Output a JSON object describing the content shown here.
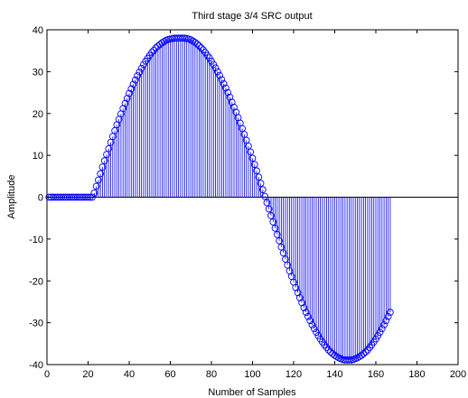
{
  "chart_data": {
    "type": "stem",
    "title": "Third stage 3/4 SRC  output",
    "xlabel": "Number of Samples",
    "ylabel": "Amplitude",
    "xlim": [
      0,
      200
    ],
    "ylim": [
      -40,
      40
    ],
    "xticks": [
      0,
      20,
      40,
      60,
      80,
      100,
      120,
      140,
      160,
      180,
      200
    ],
    "yticks": [
      -40,
      -30,
      -20,
      -10,
      0,
      10,
      20,
      30,
      40
    ],
    "grid": false,
    "marker": "circle-open",
    "color": "#0000ff",
    "series": [
      {
        "x_start": 1,
        "x_step": 1,
        "values": [
          0,
          0,
          0,
          0,
          0,
          0,
          0,
          0,
          0,
          0,
          0,
          0,
          0,
          0,
          0,
          0,
          0,
          0,
          0,
          0,
          0,
          0,
          1.0,
          2.6,
          4.1,
          5.6,
          7.2,
          8.7,
          10.2,
          11.6,
          13.1,
          14.5,
          15.9,
          17.3,
          18.6,
          19.9,
          21.2,
          22.4,
          23.6,
          24.8,
          25.9,
          27.0,
          28.0,
          29.0,
          29.9,
          30.8,
          31.7,
          32.5,
          33.2,
          33.9,
          34.6,
          35.1,
          35.7,
          36.1,
          36.5,
          36.9,
          37.2,
          37.5,
          37.7,
          37.8,
          37.9,
          38.0,
          38.0,
          38.0,
          38.0,
          38.0,
          38.0,
          37.9,
          37.8,
          37.6,
          37.3,
          37.0,
          36.6,
          36.2,
          35.7,
          35.2,
          34.6,
          33.9,
          33.3,
          32.5,
          31.7,
          30.9,
          30.0,
          29.1,
          28.1,
          27.1,
          26.1,
          25.0,
          23.9,
          22.7,
          21.5,
          20.3,
          19.0,
          17.7,
          16.4,
          15.0,
          13.6,
          12.2,
          10.8,
          9.3,
          7.8,
          6.3,
          4.8,
          3.3,
          1.8,
          0.2,
          -1.3,
          -2.8,
          -4.4,
          -5.9,
          -7.4,
          -8.9,
          -10.4,
          -11.9,
          -13.3,
          -14.8,
          -16.2,
          -17.6,
          -18.9,
          -20.3,
          -21.6,
          -22.8,
          -24.0,
          -25.2,
          -26.4,
          -27.5,
          -28.5,
          -29.5,
          -30.5,
          -31.4,
          -32.3,
          -33.1,
          -33.9,
          -34.6,
          -35.3,
          -35.9,
          -36.5,
          -37.0,
          -37.4,
          -37.8,
          -38.1,
          -38.4,
          -38.6,
          -38.8,
          -38.9,
          -38.9,
          -38.9,
          -38.9,
          -38.8,
          -38.6,
          -38.4,
          -38.1,
          -37.8,
          -37.4,
          -37.0,
          -36.5,
          -35.9,
          -35.3,
          -34.6,
          -33.9,
          -33.1,
          -32.3,
          -31.4,
          -30.5,
          -29.5,
          -28.5,
          -27.5
        ]
      }
    ]
  }
}
